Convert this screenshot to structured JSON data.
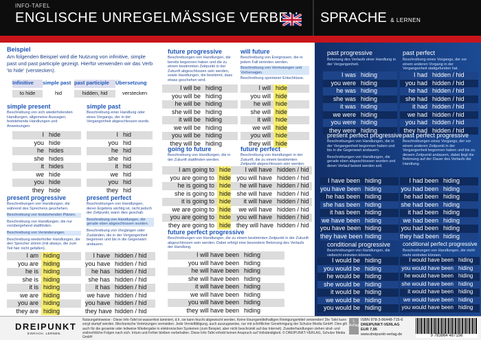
{
  "header": {
    "tag": "INFO-TAFEL",
    "title": "ENGLISCHE UNREGELMÄSSIGE VERBEN",
    "right_title": "SPRACHE",
    "right_sub": "& LERNEN"
  },
  "example": {
    "title": "Beispiel",
    "text": "Am folgenden Beispiel wird die Nutzung von infinitive, simple past und past participle gezeigt. Hierfür verwenden wir das Verb 'to hide' (verstecken).",
    "headers": [
      "Infinitive",
      "simple past",
      "past participle",
      "Übersetzung"
    ],
    "values": [
      "to hide",
      "hid",
      "hidden, hid",
      "verstecken"
    ]
  },
  "pronouns": [
    "I",
    "you",
    "he",
    "she",
    "it",
    "we",
    "you",
    "they"
  ],
  "simple_present": {
    "title": "simple present",
    "desc": "Beschreibung von sich wiederholenden Handlungen, allgemeine Aussagen, feststehende Handlungen und Anweisungen.",
    "verbs": [
      "hide",
      "hide",
      "hides",
      "hides",
      "hides",
      "hide",
      "hide",
      "hide"
    ]
  },
  "simple_past": {
    "title": "simple past",
    "desc": "Beschreibung einer Handlung oder eines Vorgangs, der in der Vergangenheit abgeschlossen wurde.",
    "verbs": [
      "hid",
      "hid",
      "hid",
      "hid",
      "hid",
      "hid",
      "hid",
      "hid"
    ]
  },
  "present_progressive": {
    "title": "present progressive",
    "descs": [
      "Beschreibungen von Handlungen, die während des Sprechens geschehen.",
      "Beschreibung von feststehenden Plänen.",
      "Beschreibung von Handlungen, die nur vorübergehend stattfinden.",
      "Beschreibung von Veränderungen.",
      "Beschreibung wiederholter Handlungen, die den Sprecher stören (mit always, die zum Teil hier nicht gefallen)."
    ],
    "pron": [
      "I am",
      "you are",
      "he is",
      "she is",
      "it is",
      "we are",
      "you are",
      "they are"
    ],
    "verb": "hiding"
  },
  "present_perfect": {
    "title": "present perfect",
    "descs": [
      "Beschreibungen von Handlungen, deren Ergebnis wichtig ist, nicht jedoch der Zeitpunkt, wann dies geschah.",
      "Beschreibung von Handlungen, die gerade eben abgeschlossen wurden.",
      "Beschreibung von Vorgängen oder Zuständen, die in der Vergangenheit begonnen und bis in die Gegenwart andauern."
    ],
    "pron": [
      "I have",
      "you have",
      "he has",
      "she has",
      "it has",
      "we have",
      "you have",
      "they have"
    ],
    "verb": "hidden / hid"
  },
  "future_progressive": {
    "title": "future progressive",
    "desc": "Beschreibungen von Handlungen, die bereits begonnen haben und die zu einem bestimmten Zeitpunkt in der Zukunft abgeschlossen sein werden, sowie Handlungen, die bestimmt, dass etwas geschehen wird.",
    "pron": [
      "I will be",
      "you will be",
      "he will be",
      "she will be",
      "it will be",
      "we will be",
      "you will be",
      "they will be"
    ],
    "verb": "hiding"
  },
  "will_future": {
    "title": "will future",
    "descs": [
      "Beschreibung von Ereignissen, die in jedem Fall eintreten werden.",
      "Beschreibung von Vermutungen und Vorhersagen.",
      "Beschreibung spontaner Entschlüsse."
    ],
    "pron": [
      "I will",
      "you will",
      "he will",
      "she will",
      "it will",
      "we will",
      "you will",
      "they will"
    ],
    "verb": "hide"
  },
  "going_to_future": {
    "title": "going to future",
    "desc": "Beschreibung von Handlungen, die in der Zukunft stattfinden werden.",
    "pron": [
      "I am going to",
      "you are going to",
      "he is going to",
      "she is going to",
      "it is going to",
      "we are going to",
      "you are going to",
      "they are going to"
    ],
    "verb": "hide"
  },
  "future_perfect": {
    "title": "future perfect",
    "desc": "Beschreibung von Handlungen in der Zukunft, die zu einem bestimmten Zeitpunkt abgeschlossen sein werden.",
    "pron": [
      "I will have",
      "you will have",
      "he will have",
      "she will have",
      "it will have",
      "we will have",
      "you will have",
      "they will have"
    ],
    "verb": "hidden / hid"
  },
  "future_perfect_progressive": {
    "title": "future perfect progressive",
    "desc": "Beschreibungen von Handlungen, die zu einem bestimmten Zeitpunkt in der Zukunft abgeschlossen sein werden. Dabei erfolgt eine besondere Betonung des Verlaufs der Handlung.",
    "pron": [
      "I will have been",
      "you will have been",
      "he will have been",
      "she will have been",
      "it will have been",
      "we will have been",
      "you will have been",
      "they will have been"
    ],
    "verb": "hiding"
  },
  "past_progressive": {
    "title": "past progressive",
    "desc": "Betonung des Verlaufs einer Handlung in der Vergangenheit.",
    "pron": [
      "I was",
      "you were",
      "he was",
      "she was",
      "it was",
      "we were",
      "you were",
      "they were"
    ],
    "verb": "hiding"
  },
  "past_perfect": {
    "title": "past perfect",
    "desc": "Beschreibung eines Vorgangs, der vor einem anderen Vorgang in der Vergangenheit stattgefunden hat.",
    "pron": [
      "I had",
      "you had",
      "he had",
      "she had",
      "it had",
      "we had",
      "you had",
      "they had"
    ],
    "verb": "hidden / hid"
  },
  "present_perfect_progressive": {
    "title": "present perfect progressive",
    "descs": [
      "Beschreibungen von Handlungen, die in der Vergangenheit begonnen haben und bis in die Gegenwart andauern.",
      "Beschreibungen von Handlungen, die gerade eben abgeschlossen wurden und deren Verlauf betont werden soll."
    ],
    "pron": [
      "I have been",
      "you have been",
      "he has been",
      "she has been",
      "it has been",
      "we have been",
      "you have been",
      "they have been"
    ],
    "verb": "hiding"
  },
  "past_perfect_progressive": {
    "title": "past perfect progressive",
    "desc": "Beschreibungen eines Vorgangs, der vor einem anderen Zeitpunkt in der Vergangenheit begonnen haben und bis zu diesem Zeitpunkt andauern, dabei liegt die Betonung auf der Dauer des Verlaufs der Handlung.",
    "pron": [
      "I had been",
      "you had been",
      "he had been",
      "she had been",
      "it had been",
      "we had been",
      "you had been",
      "they had been"
    ],
    "verb": "hiding"
  },
  "conditional_progressive": {
    "title": "conditional progressive",
    "desc": "Beschreibungen von Handlungen, die vielleicht eintreten können.",
    "pron": [
      "I would be",
      "you would be",
      "he would be",
      "she would be",
      "it would be",
      "we would be",
      "you would be",
      "they would be"
    ],
    "verb": "hiding"
  },
  "conditional_perfect_progressive": {
    "title": "conditional perfect progressive",
    "desc": "Beschreibungen von Handlungen, die nicht mehr eintreten können.",
    "pron": [
      "I would have been",
      "you would have been",
      "he would have been",
      "she would have been",
      "it would have been",
      "we would have been",
      "you would have been",
      "they would have been"
    ],
    "verb": "hiding"
  },
  "footer": {
    "logo": "DREIPUNKT",
    "logo_sub": "EINFACH. LERNEN.",
    "note": "Nutzungshinweise - Diese Info-Tafel ist wasserfest laminiert, d.h. sie kann feucht abgewischt werden. Keine lösungsmittelhaltigen Reinigungsmittel verwenden! Die Tafel kann sorgt stumpf werden. Mechanische Verletzungen vermeiden. Jede Vervielfältigung, auch auszugsweise, nur mit schriftlicher Genehmigung der Schulze Media GmbH. Dies gilt auch für die gesamte oder teilweise Wiedergabe in elektronischen Systemen (zum Beispiel, aber nicht beschränkt auf das Internet). Zuwiderhandlungen ziehen straf- und zivilrechtliche Folgen nach sich. Irrtum und Fehler bleiben vorbehalten. Diese Info-Tafel erhebt keinen Anspruch auf Vollständigkeit. © DREIPUNKT-VERLAG, Schulze Media GmbH",
    "auflage": "1. Auflage",
    "isbn": "ISBN 978-3-86448-715-6",
    "verlag": "DREIPUNKT-VERLAG",
    "price": "EUR 7,95",
    "web": "www.dreipunkt-verlag.de",
    "barcode": "9 783864 487156"
  }
}
